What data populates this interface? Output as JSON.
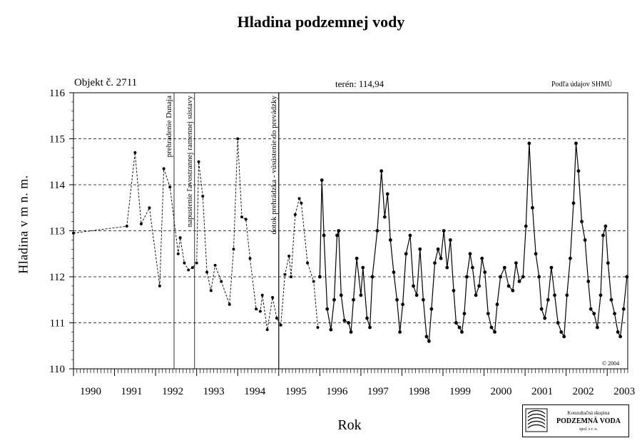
{
  "chart_data": {
    "type": "line",
    "title": "Hladina podzemnej vody",
    "ylabel": "Hladina v m n. m.",
    "xlabel": "Rok",
    "ylim": [
      110,
      116
    ],
    "xlim": [
      1990,
      2003.5
    ],
    "yticks": [
      "110",
      "111",
      "112",
      "113",
      "114",
      "115",
      "116"
    ],
    "xtick_labels": [
      {
        "year": 1990,
        "label": "1990"
      },
      {
        "year": 1991,
        "label": "1991"
      },
      {
        "year": 1992,
        "label": "1992"
      },
      {
        "year": 1993,
        "label": "1993"
      },
      {
        "year": 1994,
        "label": "1994"
      },
      {
        "year": 1995,
        "label": "1995"
      },
      {
        "year": 1996,
        "label": "1996"
      },
      {
        "year": 1997,
        "label": "1997"
      },
      {
        "year": 1998,
        "label": "1998"
      },
      {
        "year": 1999,
        "label": "1999"
      },
      {
        "year": 2000,
        "label": "2000"
      },
      {
        "year": 2001,
        "label": "2001"
      },
      {
        "year": 2002,
        "label": "2002"
      },
      {
        "year": 2003,
        "label": "2003"
      }
    ],
    "grid": {
      "horizontal": "dashed",
      "vertical": false
    },
    "object_label": "Objekt č. 2711",
    "terrain_label": "terén: 114,94",
    "source_label": "Podľa údajov SHMÚ",
    "copyright": "© 2004",
    "annotations": [
      {
        "x": 1992.45,
        "text": "prehradenie Dunaja"
      },
      {
        "x": 1992.95,
        "text": "napustenie ľavostrannej ramennej sústavy"
      },
      {
        "x": 1995.0,
        "text": "dotok prehrádzka - vúsústenie do prevádzky"
      }
    ],
    "series": [
      {
        "style": "dashed-with-markers",
        "points": [
          [
            1990.0,
            112.95
          ],
          [
            1991.3,
            113.1
          ],
          [
            1991.5,
            114.7
          ],
          [
            1991.65,
            113.15
          ],
          [
            1991.85,
            113.5
          ],
          [
            1992.1,
            111.8
          ],
          [
            1992.2,
            114.35
          ],
          [
            1992.35,
            113.95
          ],
          [
            1992.55,
            112.5
          ],
          [
            1992.6,
            112.85
          ],
          [
            1992.7,
            112.3
          ],
          [
            1992.8,
            112.15
          ],
          [
            1992.9,
            112.2
          ],
          [
            1993.0,
            112.3
          ],
          [
            1993.05,
            114.5
          ],
          [
            1993.15,
            113.75
          ],
          [
            1993.25,
            112.1
          ],
          [
            1993.35,
            111.7
          ],
          [
            1993.45,
            112.25
          ],
          [
            1993.6,
            111.9
          ],
          [
            1993.8,
            111.4
          ],
          [
            1993.9,
            112.6
          ],
          [
            1994.0,
            115.0
          ],
          [
            1994.1,
            113.3
          ],
          [
            1994.2,
            113.25
          ],
          [
            1994.3,
            112.4
          ],
          [
            1994.45,
            111.3
          ],
          [
            1994.55,
            111.25
          ],
          [
            1994.6,
            111.6
          ],
          [
            1994.72,
            110.85
          ],
          [
            1994.85,
            111.55
          ],
          [
            1994.95,
            111.1
          ],
          [
            1995.05,
            110.95
          ],
          [
            1995.15,
            112.05
          ],
          [
            1995.25,
            112.45
          ],
          [
            1995.3,
            112.0
          ],
          [
            1995.4,
            113.35
          ],
          [
            1995.5,
            113.7
          ],
          [
            1995.55,
            113.6
          ],
          [
            1995.7,
            112.3
          ],
          [
            1995.85,
            111.9
          ],
          [
            1995.95,
            110.9
          ]
        ]
      },
      {
        "style": "dense-markers",
        "points": [
          [
            1996.0,
            112.0
          ],
          [
            1996.05,
            114.1
          ],
          [
            1996.1,
            112.9
          ],
          [
            1996.18,
            111.3
          ],
          [
            1996.27,
            110.85
          ],
          [
            1996.35,
            111.5
          ],
          [
            1996.42,
            112.9
          ],
          [
            1996.46,
            113.0
          ],
          [
            1996.52,
            111.6
          ],
          [
            1996.6,
            111.05
          ],
          [
            1996.7,
            111.0
          ],
          [
            1996.76,
            110.8
          ],
          [
            1996.82,
            111.5
          ],
          [
            1996.9,
            112.4
          ],
          [
            1997.0,
            111.6
          ],
          [
            1997.05,
            112.2
          ],
          [
            1997.15,
            111.1
          ],
          [
            1997.22,
            110.9
          ],
          [
            1997.28,
            112.0
          ],
          [
            1997.4,
            113.0
          ],
          [
            1997.5,
            114.3
          ],
          [
            1997.58,
            113.3
          ],
          [
            1997.65,
            113.8
          ],
          [
            1997.72,
            112.8
          ],
          [
            1997.8,
            112.1
          ],
          [
            1997.88,
            111.5
          ],
          [
            1997.95,
            110.8
          ],
          [
            1998.02,
            111.4
          ],
          [
            1998.1,
            112.5
          ],
          [
            1998.2,
            112.9
          ],
          [
            1998.28,
            111.8
          ],
          [
            1998.36,
            111.6
          ],
          [
            1998.44,
            112.6
          ],
          [
            1998.52,
            111.5
          ],
          [
            1998.6,
            110.7
          ],
          [
            1998.66,
            110.6
          ],
          [
            1998.72,
            111.3
          ],
          [
            1998.8,
            112.3
          ],
          [
            1998.88,
            112.6
          ],
          [
            1998.95,
            112.4
          ],
          [
            1999.02,
            113.0
          ],
          [
            1999.1,
            112.2
          ],
          [
            1999.18,
            112.8
          ],
          [
            1999.26,
            111.7
          ],
          [
            1999.32,
            111.0
          ],
          [
            1999.4,
            110.9
          ],
          [
            1999.46,
            110.8
          ],
          [
            1999.52,
            111.2
          ],
          [
            1999.58,
            112.0
          ],
          [
            1999.66,
            112.5
          ],
          [
            1999.72,
            112.2
          ],
          [
            1999.8,
            111.6
          ],
          [
            1999.88,
            111.8
          ],
          [
            1999.95,
            112.4
          ],
          [
            2000.02,
            112.1
          ],
          [
            2000.1,
            111.2
          ],
          [
            2000.18,
            110.9
          ],
          [
            2000.26,
            110.8
          ],
          [
            2000.32,
            111.4
          ],
          [
            2000.4,
            112.0
          ],
          [
            2000.5,
            112.2
          ],
          [
            2000.6,
            111.8
          ],
          [
            2000.7,
            111.7
          ],
          [
            2000.78,
            112.3
          ],
          [
            2000.86,
            111.9
          ],
          [
            2000.95,
            112.0
          ],
          [
            2001.02,
            113.1
          ],
          [
            2001.1,
            114.9
          ],
          [
            2001.18,
            113.5
          ],
          [
            2001.26,
            112.5
          ],
          [
            2001.34,
            112.0
          ],
          [
            2001.4,
            111.3
          ],
          [
            2001.48,
            111.1
          ],
          [
            2001.56,
            111.5
          ],
          [
            2001.64,
            112.2
          ],
          [
            2001.72,
            111.6
          ],
          [
            2001.8,
            111.0
          ],
          [
            2001.88,
            110.8
          ],
          [
            2001.95,
            110.7
          ],
          [
            2002.02,
            111.6
          ],
          [
            2002.1,
            112.4
          ],
          [
            2002.18,
            113.6
          ],
          [
            2002.24,
            114.9
          ],
          [
            2002.3,
            114.3
          ],
          [
            2002.38,
            113.2
          ],
          [
            2002.46,
            112.8
          ],
          [
            2002.54,
            111.9
          ],
          [
            2002.6,
            111.3
          ],
          [
            2002.68,
            111.2
          ],
          [
            2002.76,
            110.9
          ],
          [
            2002.84,
            111.6
          ],
          [
            2002.9,
            112.9
          ],
          [
            2002.96,
            113.1
          ],
          [
            2003.02,
            112.3
          ],
          [
            2003.1,
            111.5
          ],
          [
            2003.18,
            111.2
          ],
          [
            2003.26,
            110.8
          ],
          [
            2003.32,
            110.7
          ],
          [
            2003.4,
            111.3
          ],
          [
            2003.48,
            112.0
          ]
        ]
      }
    ]
  },
  "logo": {
    "line1": "Konzultačná skupina",
    "line2": "PODZEMNÁ VODA",
    "line3": "spol. s r. o."
  }
}
